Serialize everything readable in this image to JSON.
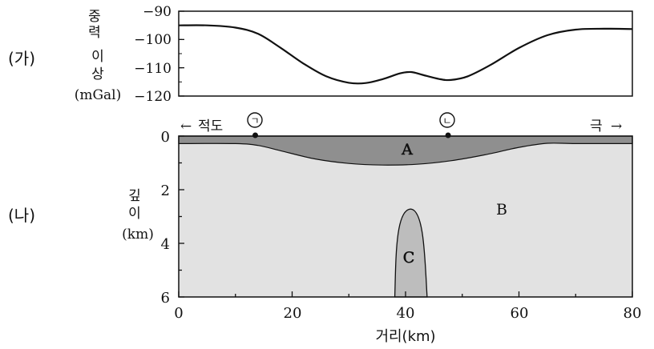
{
  "panel_a": {
    "label": "(가)",
    "ylabel_lines": [
      "중",
      "력",
      "이",
      "상"
    ],
    "yunit": "(mGal)",
    "yticks": [
      "−90",
      "−100",
      "−110",
      "−120"
    ],
    "ytick_values": [
      -90,
      -100,
      -110,
      -120
    ],
    "profile": [
      [
        0,
        -95
      ],
      [
        5,
        -95
      ],
      [
        10,
        -95.8
      ],
      [
        14,
        -98
      ],
      [
        18,
        -103
      ],
      [
        22,
        -108.5
      ],
      [
        26,
        -113
      ],
      [
        30,
        -115.3
      ],
      [
        33,
        -115.4
      ],
      [
        36,
        -114
      ],
      [
        39,
        -112
      ],
      [
        41,
        -111.5
      ],
      [
        43,
        -112.5
      ],
      [
        46,
        -114
      ],
      [
        48,
        -114.3
      ],
      [
        51,
        -113
      ],
      [
        55,
        -109
      ],
      [
        60,
        -103
      ],
      [
        65,
        -98.5
      ],
      [
        70,
        -96.5
      ],
      [
        75,
        -96.2
      ],
      [
        80,
        -96.3
      ]
    ]
  },
  "panel_b": {
    "label": "(나)",
    "ylabel_lines": [
      "깊",
      "이"
    ],
    "yunit": "(km)",
    "yticks": [
      "0",
      "2",
      "4",
      "6"
    ],
    "ytick_values": [
      0,
      2,
      4,
      6
    ],
    "xticks": [
      "0",
      "20",
      "40",
      "60",
      "80"
    ],
    "xtick_values": [
      0,
      20,
      40,
      60,
      80
    ],
    "xlabel": "거리(km)",
    "left_direction": "적도",
    "right_direction": "극",
    "arrow_left": "←",
    "arrow_right": "→",
    "point_labels": [
      "ㄱ",
      "ㄴ"
    ],
    "point_positions_km": [
      13.5,
      47.5
    ],
    "layer_a": "A",
    "layer_b": "B",
    "body_c": "C",
    "colors": {
      "layer_a": "#8f8f8f",
      "layer_b": "#e2e2e2",
      "body_c": "#bdbdbd"
    }
  }
}
